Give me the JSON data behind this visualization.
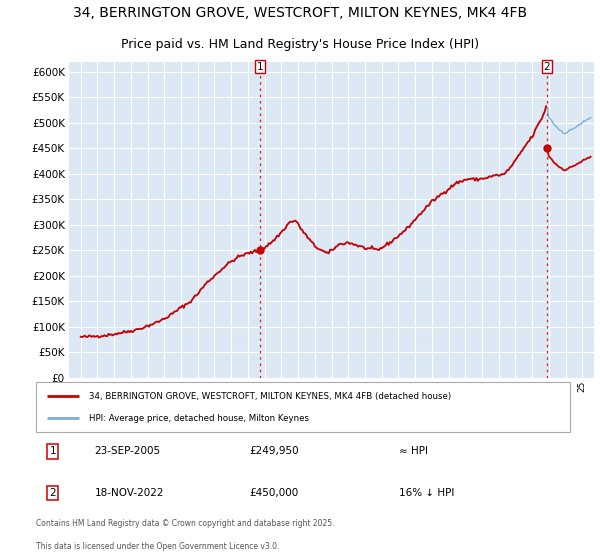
{
  "title_line1": "34, BERRINGTON GROVE, WESTCROFT, MILTON KEYNES, MK4 4FB",
  "title_line2": "Price paid vs. HM Land Registry's House Price Index (HPI)",
  "background_color": "#ffffff",
  "plot_bg_color": "#dce9f5",
  "grid_color": "#ffffff",
  "hpi_color": "#7ab0d4",
  "price_color": "#cc0000",
  "marker_color": "#cc0000",
  "vline_color": "#cc0000",
  "ylim": [
    0,
    620000
  ],
  "xlim_left": 1994.3,
  "xlim_right": 2025.7,
  "ytick_step": 50000,
  "legend_label_red": "34, BERRINGTON GROVE, WESTCROFT, MILTON KEYNES, MK4 4FB (detached house)",
  "legend_label_blue": "HPI: Average price, detached house, Milton Keynes",
  "transaction1": {
    "date": "23-SEP-2005",
    "price": 249950,
    "note": "≈ HPI",
    "marker_x": 2005.73
  },
  "transaction2": {
    "date": "18-NOV-2022",
    "price": 450000,
    "note": "16% ↓ HPI",
    "marker_x": 2022.88
  },
  "footnote_line1": "Contains HM Land Registry data © Crown copyright and database right 2025.",
  "footnote_line2": "This data is licensed under the Open Government Licence v3.0.",
  "title_fontsize": 10,
  "subtitle_fontsize": 9
}
